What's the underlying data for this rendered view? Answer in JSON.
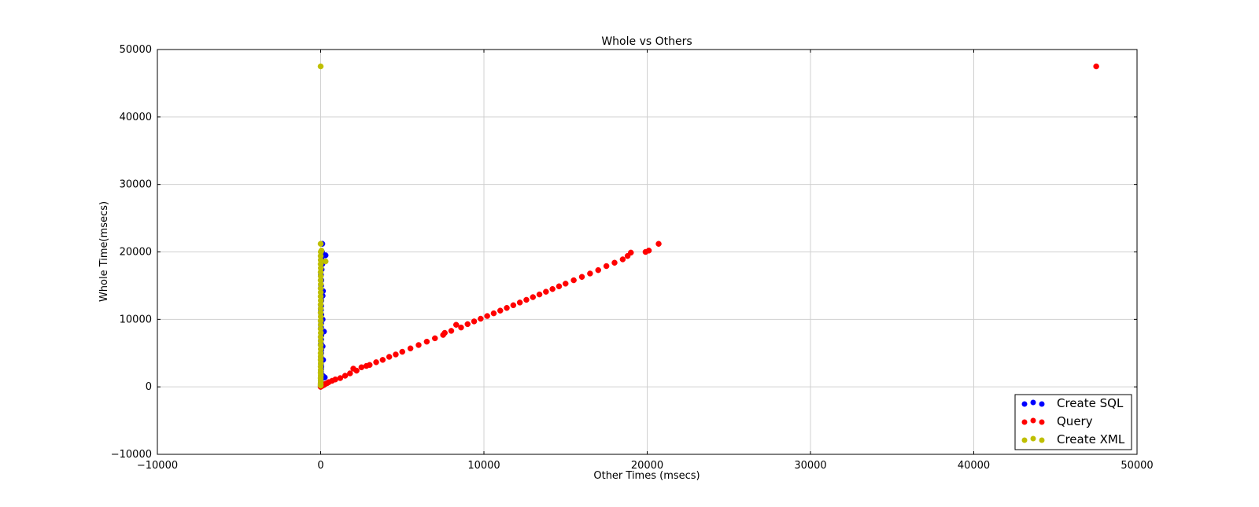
{
  "chart_data": {
    "type": "scatter",
    "title": "Whole vs Others",
    "xlabel": "Other Times (msecs)",
    "ylabel": "Whole Time(msecs)",
    "xlim": [
      -10000,
      50000
    ],
    "ylim": [
      -10000,
      50000
    ],
    "x_ticks": [
      -10000,
      0,
      10000,
      20000,
      30000,
      40000,
      50000
    ],
    "y_ticks": [
      -10000,
      0,
      10000,
      20000,
      30000,
      40000,
      50000
    ],
    "x_tick_labels": [
      "−10000",
      "0",
      "10000",
      "20000",
      "30000",
      "40000",
      "50000"
    ],
    "y_tick_labels": [
      "−10000",
      "0",
      "10000",
      "20000",
      "30000",
      "40000",
      "50000"
    ],
    "grid": true,
    "legend_position": "lower-right",
    "series": [
      {
        "name": "Create SQL",
        "color": "#0000ff",
        "points": [
          [
            5,
            300
          ],
          [
            10,
            600
          ],
          [
            15,
            900
          ],
          [
            20,
            1200
          ],
          [
            25,
            1500
          ],
          [
            40,
            1800
          ],
          [
            60,
            1400
          ],
          [
            150,
            1600
          ],
          [
            250,
            1400
          ],
          [
            20,
            2200
          ],
          [
            30,
            2600
          ],
          [
            40,
            3000
          ],
          [
            20,
            3400
          ],
          [
            30,
            3800
          ],
          [
            150,
            4000
          ],
          [
            20,
            4400
          ],
          [
            30,
            5000
          ],
          [
            40,
            5500
          ],
          [
            120,
            6000
          ],
          [
            20,
            6400
          ],
          [
            30,
            7000
          ],
          [
            40,
            7600
          ],
          [
            200,
            8200
          ],
          [
            25,
            8800
          ],
          [
            30,
            9400
          ],
          [
            120,
            10000
          ],
          [
            40,
            10700
          ],
          [
            20,
            11400
          ],
          [
            30,
            12000
          ],
          [
            40,
            12800
          ],
          [
            120,
            13500
          ],
          [
            140,
            14200
          ],
          [
            30,
            15000
          ],
          [
            40,
            15800
          ],
          [
            20,
            16600
          ],
          [
            60,
            17400
          ],
          [
            100,
            18200
          ],
          [
            50,
            19000
          ],
          [
            300,
            19500
          ],
          [
            80,
            20000
          ],
          [
            100,
            21200
          ]
        ]
      },
      {
        "name": "Query",
        "color": "#ff0000",
        "points": [
          [
            0,
            0
          ],
          [
            100,
            150
          ],
          [
            200,
            280
          ],
          [
            300,
            450
          ],
          [
            400,
            550
          ],
          [
            500,
            700
          ],
          [
            700,
            900
          ],
          [
            900,
            1100
          ],
          [
            1200,
            1300
          ],
          [
            1500,
            1650
          ],
          [
            1800,
            2000
          ],
          [
            2000,
            2700
          ],
          [
            2200,
            2400
          ],
          [
            2500,
            2900
          ],
          [
            2800,
            3100
          ],
          [
            3000,
            3250
          ],
          [
            3400,
            3650
          ],
          [
            3800,
            4000
          ],
          [
            4200,
            4450
          ],
          [
            4600,
            4800
          ],
          [
            5000,
            5200
          ],
          [
            5500,
            5700
          ],
          [
            6000,
            6200
          ],
          [
            6500,
            6700
          ],
          [
            7000,
            7200
          ],
          [
            7500,
            7700
          ],
          [
            7600,
            8000
          ],
          [
            8000,
            8300
          ],
          [
            8300,
            9200
          ],
          [
            8600,
            8800
          ],
          [
            9000,
            9300
          ],
          [
            9400,
            9700
          ],
          [
            9800,
            10100
          ],
          [
            10200,
            10500
          ],
          [
            10600,
            10900
          ],
          [
            11000,
            11300
          ],
          [
            11400,
            11700
          ],
          [
            11800,
            12100
          ],
          [
            12200,
            12500
          ],
          [
            12600,
            12900
          ],
          [
            13000,
            13300
          ],
          [
            13400,
            13700
          ],
          [
            13800,
            14100
          ],
          [
            14200,
            14500
          ],
          [
            14600,
            14900
          ],
          [
            15000,
            15300
          ],
          [
            15500,
            15800
          ],
          [
            16000,
            16300
          ],
          [
            16500,
            16800
          ],
          [
            17000,
            17300
          ],
          [
            17500,
            17900
          ],
          [
            18000,
            18400
          ],
          [
            18500,
            18900
          ],
          [
            18800,
            19400
          ],
          [
            19000,
            19900
          ],
          [
            19900,
            20000
          ],
          [
            20100,
            20200
          ],
          [
            20700,
            21200
          ],
          [
            47500,
            47500
          ]
        ]
      },
      {
        "name": "Create XML",
        "color": "#bfbf00",
        "points": [
          [
            0,
            200
          ],
          [
            0,
            500
          ],
          [
            5,
            900
          ],
          [
            0,
            1300
          ],
          [
            10,
            1700
          ],
          [
            0,
            2100
          ],
          [
            5,
            2500
          ],
          [
            0,
            3000
          ],
          [
            10,
            3500
          ],
          [
            0,
            4000
          ],
          [
            5,
            4500
          ],
          [
            0,
            5000
          ],
          [
            10,
            5600
          ],
          [
            0,
            6200
          ],
          [
            5,
            6800
          ],
          [
            0,
            7400
          ],
          [
            10,
            8000
          ],
          [
            0,
            8600
          ],
          [
            5,
            9200
          ],
          [
            0,
            9800
          ],
          [
            10,
            10400
          ],
          [
            0,
            11000
          ],
          [
            5,
            11600
          ],
          [
            0,
            12200
          ],
          [
            10,
            12800
          ],
          [
            0,
            13400
          ],
          [
            5,
            14000
          ],
          [
            0,
            14600
          ],
          [
            10,
            15200
          ],
          [
            0,
            15800
          ],
          [
            5,
            16400
          ],
          [
            0,
            17000
          ],
          [
            10,
            17600
          ],
          [
            0,
            18200
          ],
          [
            5,
            18800
          ],
          [
            300,
            18600
          ],
          [
            0,
            19400
          ],
          [
            10,
            20000
          ],
          [
            50,
            20200
          ],
          [
            0,
            21200
          ],
          [
            0,
            47500
          ]
        ]
      }
    ]
  }
}
